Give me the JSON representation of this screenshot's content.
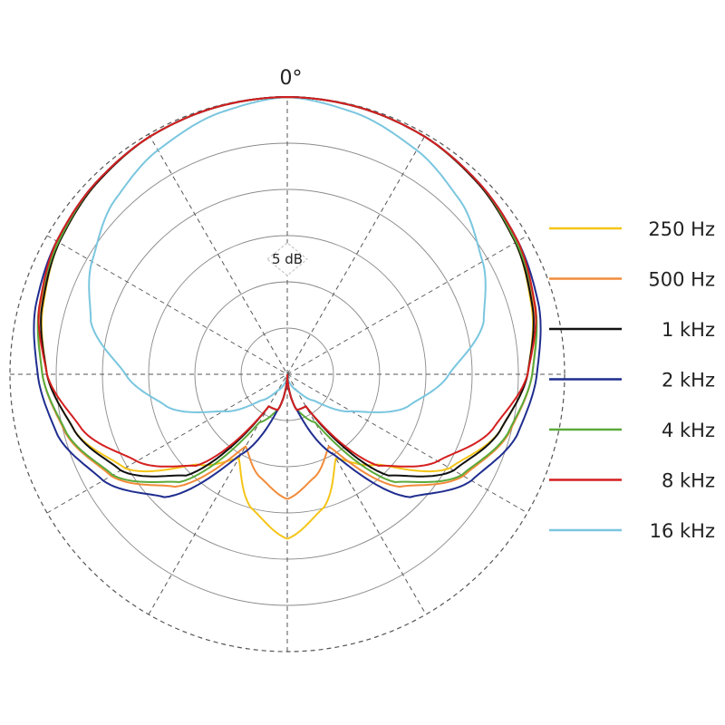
{
  "chart_data": {
    "type": "polar",
    "title": "",
    "angle_label": "0°",
    "scale_label": "5 dB",
    "ring_step_db": 5,
    "rings": 6,
    "spokes_deg": 30,
    "grid": true,
    "legend_position": "right",
    "angles_deg": [
      0,
      15,
      30,
      45,
      60,
      75,
      90,
      105,
      120,
      135,
      150,
      165,
      180
    ],
    "series": [
      {
        "name": "250 Hz",
        "color": "#f5c518",
        "db": [
          0.0,
          -0.1,
          -0.3,
          -0.8,
          -1.5,
          -2.6,
          -4.0,
          -6.2,
          -9.7,
          -16.2,
          -19.5,
          -15.0,
          -12.2
        ]
      },
      {
        "name": "500 Hz",
        "color": "#f28c3a",
        "db": [
          0.0,
          -0.1,
          -0.3,
          -0.8,
          -1.5,
          -2.3,
          -3.5,
          -5.2,
          -8.0,
          -12.8,
          -21.0,
          -18.5,
          -16.5
        ]
      },
      {
        "name": "1 kHz",
        "color": "#111111",
        "db": [
          0.0,
          -0.1,
          -0.3,
          -0.8,
          -1.5,
          -2.5,
          -4.0,
          -6.2,
          -9.2,
          -14.5,
          -26.0,
          -26.0,
          -30.0
        ]
      },
      {
        "name": "2 kHz",
        "color": "#1f2d8f",
        "db": [
          0.0,
          -0.1,
          -0.3,
          -0.7,
          -1.2,
          -1.8,
          -3.0,
          -4.3,
          -7.0,
          -11.2,
          -20.0,
          -26.0,
          -30.0
        ]
      },
      {
        "name": "4 kHz",
        "color": "#5aaa3a",
        "db": [
          0.0,
          -0.1,
          -0.3,
          -0.7,
          -1.4,
          -2.2,
          -3.5,
          -5.3,
          -8.2,
          -13.5,
          -24.0,
          -26.0,
          -30.0
        ]
      },
      {
        "name": "8 kHz",
        "color": "#d41f1f",
        "db": [
          0.0,
          -0.1,
          -0.3,
          -0.7,
          -1.2,
          -2.2,
          -4.0,
          -7.0,
          -11.2,
          -16.0,
          -26.0,
          -26.0,
          -30.0
        ]
      },
      {
        "name": "16 kHz",
        "color": "#7ac6df",
        "db": [
          0.0,
          -0.8,
          -2.0,
          -3.5,
          -5.6,
          -8.0,
          -12.5,
          -16.5,
          -22.0,
          -26.0,
          -28.0,
          -29.0,
          -30.0
        ]
      }
    ]
  }
}
